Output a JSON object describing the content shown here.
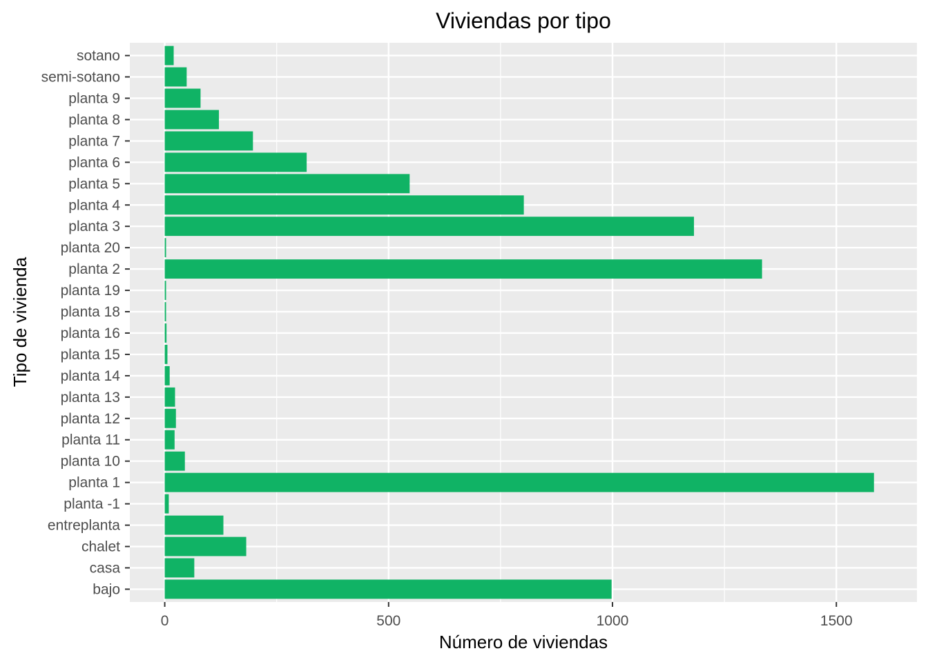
{
  "chart_data": {
    "type": "bar",
    "orientation": "horizontal",
    "title": "Viviendas por tipo",
    "xlabel": "Número de viviendas",
    "ylabel": "Tipo de vivienda",
    "xlim": [
      -78,
      1680
    ],
    "xticks": [
      0,
      500,
      1000,
      1500
    ],
    "xtick_labels": [
      "0",
      "500",
      "1000",
      "1500"
    ],
    "grid": true,
    "legend": "none",
    "bar_color": "#10B365",
    "panel_color": "#EBEBEB",
    "categories": [
      "bajo",
      "casa",
      "chalet",
      "entreplanta",
      "planta -1",
      "planta 1",
      "planta 10",
      "planta 11",
      "planta 12",
      "planta 13",
      "planta 14",
      "planta 15",
      "planta 16",
      "planta 18",
      "planta 19",
      "planta 2",
      "planta 20",
      "planta 3",
      "planta 4",
      "planta 5",
      "planta 6",
      "planta 7",
      "planta 8",
      "planta 9",
      "semi-sotano",
      "sotano"
    ],
    "values": [
      998,
      66,
      182,
      131,
      9,
      1584,
      45,
      22,
      25,
      23,
      11,
      6,
      4,
      3,
      3,
      1334,
      3,
      1182,
      802,
      547,
      317,
      197,
      121,
      80,
      49,
      20
    ]
  }
}
